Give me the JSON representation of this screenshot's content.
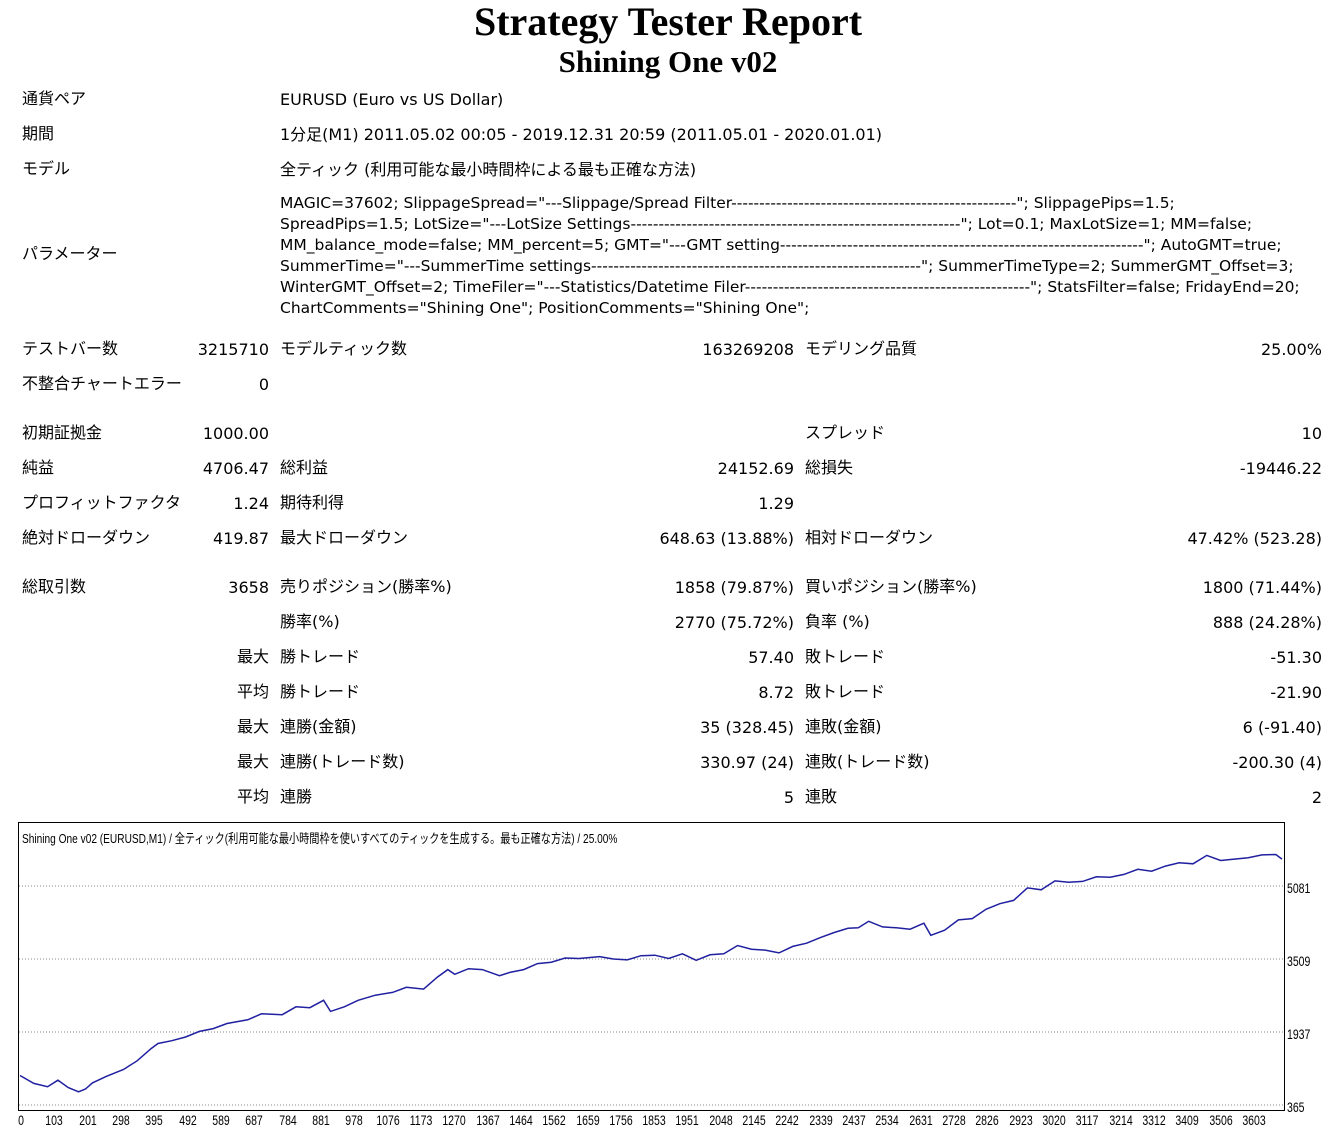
{
  "report": {
    "title": "Strategy Tester Report",
    "subtitle": "Shining One v02"
  },
  "info": {
    "symbol_label": "通貨ペア",
    "symbol_value": "EURUSD (Euro vs US Dollar)",
    "period_label": "期間",
    "period_value": "1分足(M1) 2011.05.02 00:05 - 2019.12.31 20:59 (2011.05.01 - 2020.01.01)",
    "model_label": "モデル",
    "model_value": "全ティック (利用可能な最小時間枠による最も正確な方法)",
    "params_label": "パラメーター",
    "params_lines": [
      "MAGIC=37602; SlippageSpread=\"---Slippage/Spread Filter---------------------------------------------------\"; SlippagePips=1.5;",
      "SpreadPips=1.5; LotSize=\"---LotSize Settings-----------------------------------------------------------\"; Lot=0.1; MaxLotSize=1; MM=false;",
      "MM_balance_mode=false; MM_percent=5; GMT=\"---GMT setting-----------------------------------------------------------------\"; AutoGMT=true;",
      "SummerTime=\"---SummerTime settings-----------------------------------------------------------\"; SummerTimeType=2; SummerGMT_Offset=3;",
      "WinterGMT_Offset=2; TimeFiler=\"---Statistics/Datetime Filer---------------------------------------------------\"; StatsFilter=false; FridayEnd=20;",
      "ChartComments=\"Shining One\"; PositionComments=\"Shining One\";"
    ]
  },
  "stats": {
    "bars_label": "テストバー数",
    "bars_value": "3215710",
    "ticks_label": "モデルティック数",
    "ticks_value": "163269208",
    "quality_label": "モデリング品質",
    "quality_value": "25.00%",
    "mismatch_label": "不整合チャートエラー",
    "mismatch_value": "0",
    "deposit_label": "初期証拠金",
    "deposit_value": "1000.00",
    "spread_label": "スプレッド",
    "spread_value": "10",
    "net_label": "純益",
    "net_value": "4706.47",
    "gross_profit_label": "総利益",
    "gross_profit_value": "24152.69",
    "gross_loss_label": "総損失",
    "gross_loss_value": "-19446.22",
    "pf_label": "プロフィットファクタ",
    "pf_value": "1.24",
    "payoff_label": "期待利得",
    "payoff_value": "1.29",
    "abs_dd_label": "絶対ドローダウン",
    "abs_dd_value": "419.87",
    "max_dd_label": "最大ドローダウン",
    "max_dd_value": "648.63 (13.88%)",
    "rel_dd_label": "相対ドローダウン",
    "rel_dd_value": "47.42% (523.28)",
    "trades_label": "総取引数",
    "trades_value": "3658",
    "short_label": "売りポジション(勝率%)",
    "short_value": "1858 (79.87%)",
    "long_label": "買いポジション(勝率%)",
    "long_value": "1800 (71.44%)",
    "win_label": "勝率(%)",
    "win_value": "2770 (75.72%)",
    "loss_label": "負率 (%)",
    "loss_value": "888 (24.28%)",
    "max_label": "最大",
    "avg_label": "平均",
    "largest_win_label": "勝トレード",
    "largest_win_value": "57.40",
    "largest_loss_label": "敗トレード",
    "largest_loss_value": "-51.30",
    "average_win_label": "勝トレード",
    "average_win_value": "8.72",
    "average_loss_label": "敗トレード",
    "average_loss_value": "-21.90",
    "max_cons_win_label": "連勝(金額)",
    "max_cons_win_value": "35 (328.45)",
    "max_cons_loss_label": "連敗(金額)",
    "max_cons_loss_value": "6 (-91.40)",
    "max_cons_profit_label": "連勝(トレード数)",
    "max_cons_profit_value": "330.97 (24)",
    "max_cons_lossamt_label": "連敗(トレード数)",
    "max_cons_lossamt_value": "-200.30 (4)",
    "avg_cons_win_label": "連勝",
    "avg_cons_win_value": "5",
    "avg_cons_loss_label": "連敗",
    "avg_cons_loss_value": "2"
  },
  "chart_data": {
    "type": "line",
    "title": "Shining One v02 (EURUSD,M1) / 全ティック(利用可能な最小時間枠を使いすべてのティックを生成する。最も正確な方法) / 25.00%",
    "xlabel": "",
    "ylabel": "",
    "xlim": [
      0,
      3658
    ],
    "ylim": [
      365,
      5800
    ],
    "y_ticks": [
      365,
      1937,
      3509,
      5081
    ],
    "x_ticks": [
      0,
      103,
      201,
      298,
      395,
      492,
      589,
      687,
      784,
      881,
      978,
      1076,
      1173,
      1270,
      1367,
      1464,
      1562,
      1659,
      1756,
      1853,
      1951,
      2048,
      2145,
      2242,
      2339,
      2437,
      2534,
      2631,
      2728,
      2826,
      2923,
      3020,
      3117,
      3214,
      3312,
      3409,
      3506,
      3603
    ],
    "grid": "horizontal",
    "line_color": "#2020a0",
    "series": [
      {
        "x": [
          0,
          40,
          80,
          110,
          140,
          170,
          190,
          210,
          250,
          300,
          340,
          380,
          400,
          440,
          480,
          520,
          560,
          600,
          660,
          700,
          760,
          800,
          840,
          880,
          900,
          940,
          980,
          1030,
          1080,
          1120,
          1170,
          1210,
          1240,
          1260,
          1300,
          1340,
          1390,
          1420,
          1460,
          1500,
          1540,
          1580,
          1620,
          1680,
          1720,
          1760,
          1800,
          1840,
          1880,
          1920,
          1960,
          2000,
          2040,
          2080,
          2120,
          2160,
          2200,
          2240,
          2280,
          2320,
          2360,
          2400,
          2430,
          2460,
          2500,
          2540,
          2580,
          2620,
          2640,
          2680,
          2720,
          2760,
          2800,
          2840,
          2880,
          2920,
          2960,
          3000,
          3040,
          3080,
          3120,
          3160,
          3200,
          3240,
          3280,
          3320,
          3360,
          3400,
          3440,
          3480,
          3520,
          3560,
          3600,
          3640,
          3658
        ],
        "y": [
          1000,
          830,
          760,
          900,
          740,
          650,
          710,
          840,
          980,
          1130,
          1320,
          1580,
          1690,
          1750,
          1830,
          1950,
          2010,
          2120,
          2200,
          2330,
          2310,
          2480,
          2460,
          2620,
          2380,
          2480,
          2620,
          2730,
          2790,
          2900,
          2860,
          3120,
          3280,
          3180,
          3300,
          3280,
          3150,
          3220,
          3280,
          3410,
          3440,
          3530,
          3520,
          3560,
          3510,
          3490,
          3580,
          3590,
          3520,
          3620,
          3480,
          3600,
          3620,
          3800,
          3720,
          3700,
          3640,
          3780,
          3850,
          3970,
          4080,
          4170,
          4180,
          4320,
          4200,
          4180,
          4150,
          4280,
          4020,
          4130,
          4350,
          4380,
          4580,
          4700,
          4770,
          5040,
          5000,
          5190,
          5160,
          5180,
          5280,
          5270,
          5330,
          5440,
          5400,
          5510,
          5580,
          5560,
          5740,
          5630,
          5660,
          5690,
          5750,
          5760,
          5660
        ]
      }
    ]
  }
}
